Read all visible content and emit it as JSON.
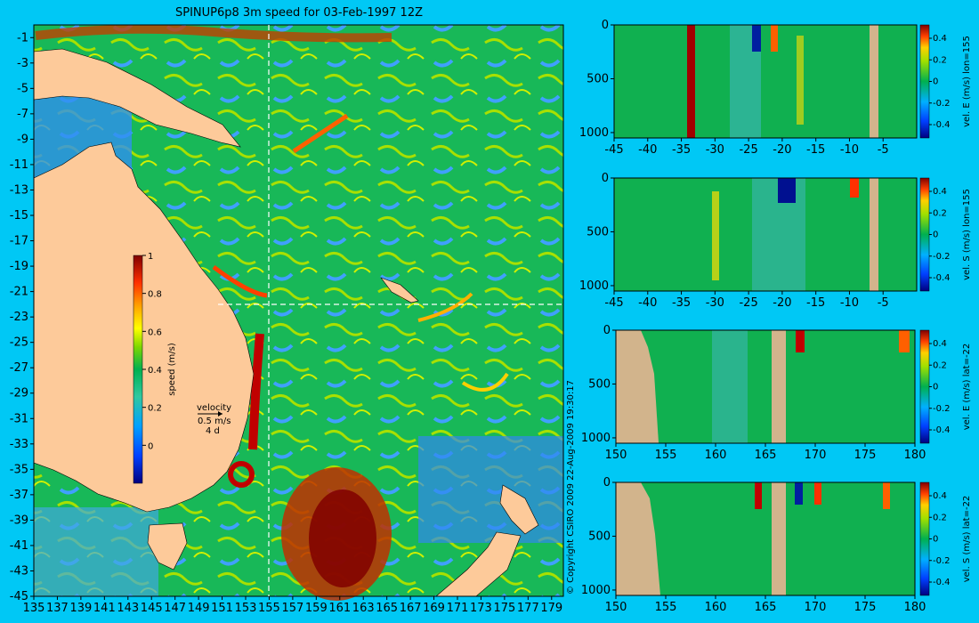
{
  "colors": {
    "background": "#00c8f5",
    "land": "#fdca9a",
    "section_land": "#d2b48c",
    "colormap": [
      "#000080",
      "#0000ff",
      "#0080ff",
      "#00c0ff",
      "#30d070",
      "#00b050",
      "#a0e000",
      "#ffff00",
      "#ffa000",
      "#ff4000",
      "#c00000",
      "#800000"
    ]
  },
  "chart_data": [
    {
      "type": "heatmap",
      "title": "SPINUP6p8 3m speed for 03-Feb-1997 12Z",
      "x_ticks": [
        "135",
        "137",
        "139",
        "141",
        "143",
        "145",
        "147",
        "149",
        "151",
        "153",
        "155",
        "157",
        "159",
        "161",
        "163",
        "165",
        "167",
        "169",
        "171",
        "173",
        "175",
        "177",
        "179"
      ],
      "y_ticks": [
        "-1",
        "-3",
        "-5",
        "-7",
        "-9",
        "-11",
        "-13",
        "-15",
        "-17",
        "-19",
        "-21",
        "-23",
        "-25",
        "-27",
        "-29",
        "-31",
        "-33",
        "-35",
        "-37",
        "-39",
        "-41",
        "-43",
        "-45"
      ],
      "xlim": [
        135,
        180
      ],
      "ylim": [
        -45,
        0
      ],
      "section_lon": 155,
      "section_lat": -22,
      "colorbar": {
        "label": "speed (m/s)",
        "ticks": [
          "0",
          "0.2",
          "0.4",
          "0.6",
          "0.8",
          "1"
        ],
        "range": [
          -0.2,
          1
        ]
      },
      "legend": {
        "label": "velocity",
        "speed": "0.5 m/s",
        "time": "4 d"
      },
      "copyright": "© Copyright CSIRO 2009 22-Aug-2009 19:30:17"
    },
    {
      "type": "heatmap",
      "x_ticks": [
        "-45",
        "-40",
        "-35",
        "-30",
        "-25",
        "-20",
        "-15",
        "-10",
        "-5"
      ],
      "y_ticks": [
        "0",
        "500",
        "1000"
      ],
      "xlim": [
        -45,
        0
      ],
      "ylim": [
        1050,
        0
      ],
      "colorbar": {
        "label": "vel. E (m/s) lon=155",
        "ticks": [
          "0.4",
          "0.2",
          "0",
          "-0.2",
          "-0.4"
        ]
      }
    },
    {
      "type": "heatmap",
      "x_ticks": [
        "-45",
        "-40",
        "-35",
        "-30",
        "-25",
        "-20",
        "-15",
        "-10",
        "-5"
      ],
      "y_ticks": [
        "0",
        "500",
        "1000"
      ],
      "xlim": [
        -45,
        0
      ],
      "ylim": [
        1050,
        0
      ],
      "colorbar": {
        "label": "vel. S (m/s) lon=155",
        "ticks": [
          "0.4",
          "0.2",
          "0",
          "-0.2",
          "-0.4"
        ]
      }
    },
    {
      "type": "heatmap",
      "x_ticks": [
        "150",
        "155",
        "160",
        "165",
        "170",
        "175",
        "180"
      ],
      "y_ticks": [
        "0",
        "500",
        "1000"
      ],
      "xlim": [
        150,
        180
      ],
      "ylim": [
        1050,
        0
      ],
      "colorbar": {
        "label": "vel. E (m/s) lat=-22",
        "ticks": [
          "0.4",
          "0.2",
          "0",
          "-0.2",
          "-0.4"
        ]
      }
    },
    {
      "type": "heatmap",
      "x_ticks": [
        "150",
        "155",
        "160",
        "165",
        "170",
        "175",
        "180"
      ],
      "y_ticks": [
        "0",
        "500",
        "1000"
      ],
      "xlim": [
        150,
        180
      ],
      "ylim": [
        1050,
        0
      ],
      "colorbar": {
        "label": "vel. S (m/s) lat=-22",
        "ticks": [
          "0.4",
          "0.2",
          "0",
          "-0.2",
          "-0.4"
        ]
      }
    }
  ]
}
